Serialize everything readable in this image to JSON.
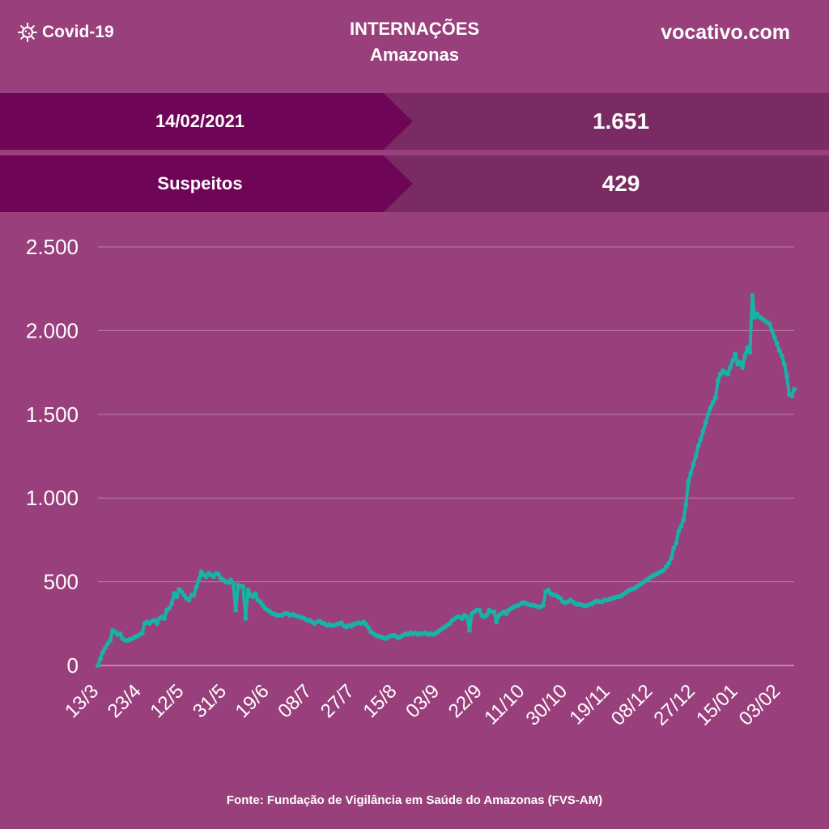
{
  "header": {
    "brand": "Covid-19",
    "title": "INTERNAÇÕES",
    "subtitle": "Amazonas",
    "site": "vocativo.com"
  },
  "stats": [
    {
      "label": "14/02/2021",
      "value": "1.651"
    },
    {
      "label": "Suspeitos",
      "value": "429"
    }
  ],
  "source": "Fonte: Fundação de Vigilância em Saúde do Amazonas (FVS-AM)",
  "colors": {
    "background": "#993f7b",
    "band_dark": "#6e0556",
    "band_light": "#7b2b63",
    "line": "#17b3a6"
  },
  "chart_data": {
    "type": "line",
    "title": "",
    "xlabel": "",
    "ylabel": "",
    "ylim": [
      0,
      2500
    ],
    "yticks": [
      0,
      500,
      1000,
      1500,
      2000,
      2500
    ],
    "ytick_labels": [
      "0",
      "500",
      "1.000",
      "1.500",
      "2.000",
      "2.500"
    ],
    "xtick_labels": [
      "13/3",
      "23/4",
      "12/5",
      "31/5",
      "19/6",
      "08/7",
      "27/7",
      "15/8",
      "03/9",
      "22/9",
      "11/10",
      "30/10",
      "19/11",
      "08/12",
      "27/12",
      "15/01",
      "03/02"
    ],
    "grid": true,
    "series": [
      {
        "values": [
          0,
          40,
          80,
          105,
          130,
          150,
          210,
          200,
          185,
          190,
          160,
          150,
          150,
          155,
          160,
          170,
          175,
          185,
          195,
          250,
          260,
          250,
          265,
          270,
          250,
          280,
          290,
          280,
          330,
          340,
          370,
          430,
          410,
          455,
          440,
          420,
          400,
          390,
          420,
          420,
          470,
          510,
          560,
          540,
          530,
          550,
          540,
          530,
          550,
          545,
          520,
          510,
          500,
          495,
          510,
          490,
          330,
          480,
          475,
          470,
          280,
          450,
          420,
          410,
          430,
          390,
          380,
          360,
          340,
          330,
          320,
          310,
          305,
          300,
          300,
          300,
          310,
          310,
          300,
          305,
          300,
          295,
          290,
          285,
          280,
          270,
          270,
          260,
          250,
          260,
          265,
          255,
          250,
          240,
          245,
          240,
          240,
          245,
          250,
          255,
          235,
          230,
          240,
          235,
          245,
          250,
          255,
          250,
          260,
          245,
          225,
          200,
          190,
          180,
          175,
          170,
          165,
          160,
          170,
          175,
          180,
          175,
          165,
          170,
          180,
          190,
          185,
          195,
          190,
          195,
          185,
          190,
          190,
          195,
          185,
          190,
          185,
          190,
          200,
          210,
          220,
          230,
          240,
          250,
          270,
          280,
          290,
          290,
          280,
          300,
          290,
          210,
          310,
          320,
          330,
          330,
          300,
          290,
          300,
          330,
          320,
          320,
          260,
          300,
          310,
          320,
          310,
          330,
          340,
          350,
          355,
          360,
          370,
          375,
          370,
          365,
          360,
          360,
          355,
          350,
          350,
          360,
          440,
          450,
          430,
          420,
          420,
          410,
          400,
          380,
          375,
          380,
          390,
          380,
          370,
          365,
          365,
          360,
          355,
          360,
          365,
          370,
          380,
          385,
          380,
          380,
          390,
          390,
          395,
          400,
          405,
          410,
          410,
          420,
          430,
          440,
          450,
          455,
          460,
          470,
          480,
          490,
          500,
          510,
          520,
          530,
          540,
          545,
          555,
          560,
          570,
          590,
          610,
          640,
          700,
          730,
          800,
          830,
          870,
          960,
          1100,
          1150,
          1200,
          1250,
          1310,
          1350,
          1400,
          1450,
          1500,
          1540,
          1570,
          1600,
          1700,
          1740,
          1760,
          1750,
          1740,
          1780,
          1820,
          1860,
          1800,
          1810,
          1780,
          1850,
          1900,
          1870,
          2210,
          2080,
          2100,
          2080,
          2070,
          2060,
          2050,
          2040,
          2000,
          1960,
          1920,
          1880,
          1850,
          1800,
          1730,
          1620,
          1610,
          1650
        ]
      }
    ]
  }
}
